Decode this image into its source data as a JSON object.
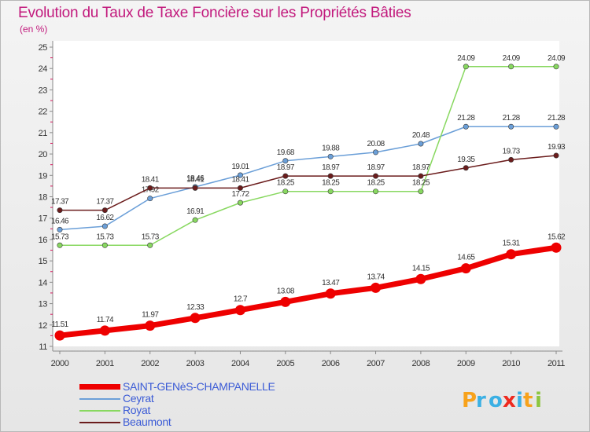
{
  "title": "Evolution du Taux de Taxe Foncière sur les Propriétés Bâties",
  "unit_label": "(en %)",
  "logo_text": "Proxiti",
  "chart_data": {
    "type": "line",
    "title": "Evolution du Taux de Taxe Foncière sur les Propriétés Bâties",
    "ylabel": "(en %)",
    "xlabel": "",
    "ylim": [
      11,
      25
    ],
    "yticks": [
      11,
      12,
      13,
      14,
      15,
      16,
      17,
      18,
      19,
      20,
      21,
      22,
      23,
      24,
      25
    ],
    "x": [
      "2000",
      "2001",
      "2002",
      "2003",
      "2004",
      "2005",
      "2006",
      "2007",
      "2008",
      "2009",
      "2010",
      "2011"
    ],
    "grid": false,
    "legend_position": "bottom-left",
    "series": [
      {
        "name": "SAINT-GENèS-CHAMPANELLE",
        "color": "#ee0000",
        "emphasis": true,
        "values": [
          11.51,
          11.74,
          11.97,
          12.33,
          12.7,
          13.08,
          13.47,
          13.74,
          14.15,
          14.65,
          15.31,
          15.62
        ],
        "labels": [
          "11.51",
          "11.74",
          "11.97",
          "12.33",
          "12.7",
          "13.08",
          "13.47",
          "13.74",
          "14.15",
          "14.65",
          "15.31",
          "15.62"
        ]
      },
      {
        "name": "Ceyrat",
        "color": "#6b9fd8",
        "values": [
          16.46,
          16.62,
          17.92,
          18.46,
          19.01,
          19.68,
          19.88,
          20.08,
          20.48,
          21.28,
          21.28,
          21.28
        ],
        "labels": [
          "16.46",
          "16.62",
          "17.92",
          "18.46",
          "19.01",
          "19.68",
          "19.88",
          "20.08",
          "20.48",
          "21.28",
          "21.28",
          "21.28"
        ]
      },
      {
        "name": "Royat",
        "color": "#88d860",
        "values": [
          15.73,
          15.73,
          15.73,
          16.91,
          17.72,
          18.25,
          18.25,
          18.25,
          18.25,
          24.09,
          24.09,
          24.09
        ],
        "labels": [
          "15.73",
          "15.73",
          "15.73",
          "16.91",
          "17.72",
          "18.25",
          "18.25",
          "18.25",
          "18.25",
          "24.09",
          "24.09",
          "24.09"
        ]
      },
      {
        "name": "Beaumont",
        "color": "#6b1c1c",
        "values": [
          17.37,
          17.37,
          18.41,
          18.41,
          18.41,
          18.97,
          18.97,
          18.97,
          18.97,
          19.35,
          19.73,
          19.93
        ],
        "labels": [
          "17.37",
          "17.37",
          "18.41",
          "18.41",
          "18.41",
          "18.97",
          "18.97",
          "18.97",
          "18.97",
          "19.35",
          "19.73",
          "19.93"
        ]
      }
    ]
  }
}
